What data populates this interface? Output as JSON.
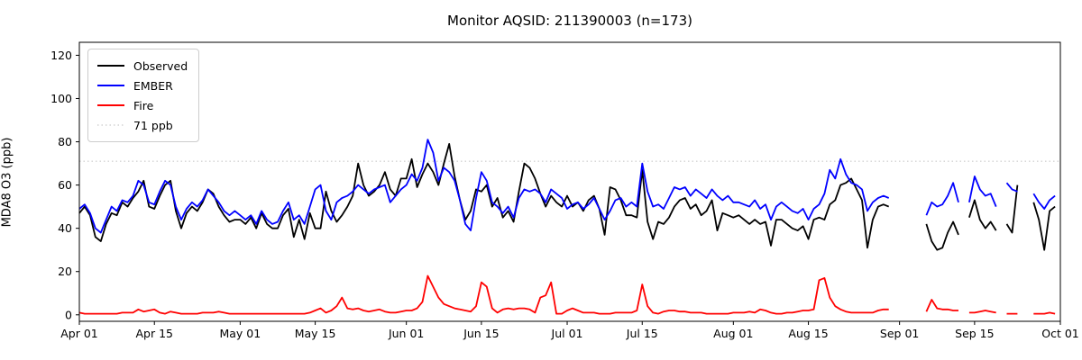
{
  "chart": {
    "title": "Monitor AQSID: 211390003 (n=173)",
    "ylabel": "MDA8 O3 (ppb)"
  },
  "legend": {
    "items": [
      {
        "label": "Observed",
        "color": "#000000",
        "style": "solid"
      },
      {
        "label": "EMBER",
        "color": "#0000ff",
        "style": "solid"
      },
      {
        "label": "Fire",
        "color": "#ff0000",
        "style": "solid"
      },
      {
        "label": "71 ppb",
        "color": "#d3d3d3",
        "style": "dotted"
      }
    ]
  },
  "colors": {
    "observed": "#000000",
    "ember": "#0000ff",
    "fire": "#ff0000",
    "threshold": "#d3d3d3",
    "axis": "#000000"
  },
  "chart_data": {
    "type": "line",
    "n": 173,
    "x_axis": "daily dates Apr 01 - Oct 01",
    "x_days_total": 183,
    "xticks": [
      {
        "label": "Apr 01",
        "day": 0
      },
      {
        "label": "Apr 15",
        "day": 14
      },
      {
        "label": "May 01",
        "day": 30
      },
      {
        "label": "May 15",
        "day": 44
      },
      {
        "label": "Jun 01",
        "day": 61
      },
      {
        "label": "Jun 15",
        "day": 75
      },
      {
        "label": "Jul 01",
        "day": 91
      },
      {
        "label": "Jul 15",
        "day": 105
      },
      {
        "label": "Aug 01",
        "day": 122
      },
      {
        "label": "Aug 15",
        "day": 136
      },
      {
        "label": "Sep 01",
        "day": 153
      },
      {
        "label": "Sep 15",
        "day": 167
      },
      {
        "label": "Oct 01",
        "day": 183
      }
    ],
    "yticks": [
      0,
      20,
      40,
      60,
      80,
      100,
      120
    ],
    "ylim": [
      -3,
      126
    ],
    "grid": false,
    "legend_position": "upper left",
    "threshold": {
      "value": 71,
      "label": "71 ppb"
    },
    "series": [
      {
        "name": "Observed",
        "color": "#000000",
        "values": [
          47,
          50,
          46,
          36,
          34,
          42,
          47,
          46,
          52,
          50,
          54,
          57,
          62,
          50,
          49,
          55,
          60,
          62,
          48,
          40,
          47,
          50,
          48,
          52,
          58,
          56,
          50,
          46,
          43,
          44,
          44,
          42,
          45,
          40,
          47,
          42,
          40,
          40,
          46,
          49,
          36,
          44,
          35,
          47,
          40,
          40,
          57,
          48,
          43,
          46,
          50,
          55,
          70,
          60,
          55,
          57,
          60,
          66,
          58,
          55,
          63,
          63,
          72,
          59,
          65,
          70,
          66,
          60,
          70,
          79,
          64,
          53,
          44,
          48,
          58,
          57,
          60,
          50,
          54,
          45,
          48,
          43,
          57,
          70,
          68,
          63,
          56,
          50,
          55,
          52,
          50,
          55,
          50,
          52,
          48,
          53,
          55,
          49,
          37,
          59,
          58,
          53,
          46,
          46,
          45,
          67,
          43,
          35,
          43,
          42,
          45,
          50,
          53,
          54,
          49,
          51,
          46,
          48,
          53,
          39,
          47,
          46,
          45,
          46,
          44,
          42,
          44,
          42,
          43,
          32,
          44,
          44,
          42,
          40,
          39,
          41,
          35,
          44,
          45,
          44,
          51,
          53,
          60,
          61,
          63,
          58,
          53,
          31,
          44,
          50,
          51,
          50,
          null,
          null,
          null,
          null,
          null,
          null,
          42,
          34,
          30,
          31,
          38,
          43,
          37,
          null,
          45,
          53,
          44,
          40,
          43,
          39,
          null,
          42,
          38,
          60,
          null,
          null,
          52,
          44,
          30,
          48,
          50
        ]
      },
      {
        "name": "EMBER",
        "color": "#0000ff",
        "values": [
          49,
          51,
          47,
          40,
          38,
          44,
          50,
          48,
          53,
          52,
          55,
          62,
          60,
          52,
          51,
          57,
          62,
          60,
          50,
          44,
          49,
          52,
          50,
          53,
          58,
          55,
          52,
          48,
          46,
          48,
          46,
          44,
          46,
          42,
          48,
          44,
          42,
          43,
          48,
          52,
          44,
          46,
          42,
          50,
          58,
          60,
          48,
          44,
          52,
          54,
          55,
          57,
          60,
          58,
          56,
          58,
          59,
          60,
          52,
          55,
          58,
          60,
          65,
          62,
          68,
          81,
          75,
          62,
          68,
          66,
          62,
          53,
          42,
          39,
          54,
          66,
          62,
          52,
          50,
          47,
          50,
          45,
          54,
          58,
          57,
          58,
          56,
          52,
          58,
          56,
          54,
          49,
          51,
          52,
          49,
          51,
          54,
          49,
          44,
          48,
          53,
          54,
          50,
          52,
          50,
          70,
          57,
          50,
          51,
          49,
          54,
          59,
          58,
          59,
          55,
          58,
          56,
          54,
          58,
          55,
          53,
          55,
          52,
          52,
          51,
          50,
          53,
          49,
          51,
          44,
          50,
          52,
          50,
          48,
          47,
          49,
          44,
          49,
          51,
          56,
          67,
          63,
          72,
          65,
          61,
          60,
          58,
          48,
          52,
          54,
          55,
          54,
          null,
          null,
          null,
          null,
          null,
          null,
          46,
          52,
          50,
          51,
          55,
          61,
          52,
          null,
          52,
          64,
          58,
          55,
          56,
          50,
          null,
          61,
          58,
          57,
          null,
          null,
          56,
          52,
          49,
          53,
          55
        ]
      },
      {
        "name": "Fire",
        "color": "#ff0000",
        "values": [
          1,
          0.5,
          0.5,
          0.5,
          0.5,
          0.5,
          0.5,
          0.5,
          1,
          1,
          1,
          2.5,
          1.5,
          2,
          2.5,
          1,
          0.5,
          1.5,
          1,
          0.5,
          0.5,
          0.5,
          0.5,
          1,
          1,
          1,
          1.5,
          1,
          0.5,
          0.5,
          0.5,
          0.5,
          0.5,
          0.5,
          0.5,
          0.5,
          0.5,
          0.5,
          0.5,
          0.5,
          0.5,
          0.5,
          0.5,
          1,
          2,
          3,
          1,
          2,
          4,
          8,
          3,
          2.5,
          3,
          2,
          1.5,
          2,
          2.5,
          1.5,
          1,
          1,
          1.5,
          2,
          2,
          3,
          6,
          18,
          13,
          8,
          5,
          4,
          3,
          2.5,
          2,
          1.5,
          4,
          15,
          13,
          3,
          1,
          2.5,
          3,
          2.5,
          3,
          3,
          2.5,
          1,
          8,
          9,
          15,
          0.5,
          0.5,
          2,
          3,
          2,
          1,
          1,
          1,
          0.5,
          0.5,
          0.5,
          1,
          1,
          1,
          1,
          2,
          14,
          4,
          1,
          0.5,
          1.5,
          2,
          2,
          1.5,
          1.5,
          1,
          1,
          1,
          0.5,
          0.5,
          0.5,
          0.5,
          0.5,
          1,
          1,
          1,
          1.5,
          1,
          2.5,
          2,
          1,
          0.5,
          0.5,
          1,
          1,
          1.5,
          2,
          2,
          2.5,
          16,
          17,
          8,
          4,
          2.5,
          1.5,
          1,
          1,
          1,
          1,
          1,
          2,
          2.5,
          2.5,
          null,
          null,
          null,
          null,
          null,
          null,
          1.5,
          7,
          3,
          2.5,
          2.5,
          2,
          2,
          null,
          1,
          1,
          1.5,
          2,
          1.5,
          1,
          null,
          0.5,
          0.5,
          0.5,
          null,
          null,
          0.5,
          0.5,
          0.5,
          1,
          0.5
        ]
      }
    ]
  }
}
